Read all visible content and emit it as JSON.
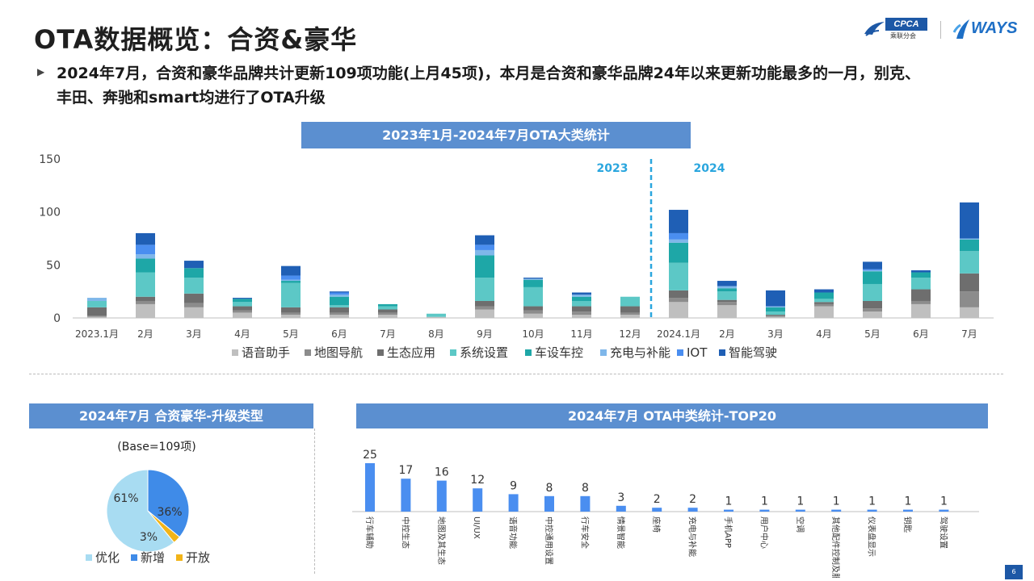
{
  "title": "OTA数据概览：合资&豪华",
  "logos": {
    "cpca_text": "CPCA",
    "cpca_sub": "乘联分会",
    "ways_text": "WAYS"
  },
  "bullet": {
    "marker": "▶",
    "line1": "2024年7月，合资和豪华品牌共计更新109项功能(上月45项)，本月是合资和豪华品牌24年以来更新功能最多的一月，别克、",
    "line2": "丰田、奔驰和smart均进行了OTA升级"
  },
  "page_number": "6",
  "colors": {
    "voice": "#bfbfbf",
    "map": "#8c8c8c",
    "eco": "#6e6e6e",
    "system": "#5cc8c6",
    "vehicle": "#1ea7a7",
    "charge": "#7fb7ea",
    "iot": "#4a8ef0",
    "adas": "#1f5fb5",
    "banner": "#5b8fd0",
    "year_label": "#2aa6de"
  },
  "chart_data": [
    {
      "type": "bar",
      "stacked": true,
      "title": "2023年1月-2024年7月OTA大类统计",
      "categories": [
        "2023.1月",
        "2月",
        "3月",
        "4月",
        "5月",
        "6月",
        "7月",
        "8月",
        "9月",
        "10月",
        "11月",
        "12月",
        "2024.1月",
        "2月",
        "3月",
        "4月",
        "5月",
        "6月",
        "7月"
      ],
      "ylim": [
        0,
        150
      ],
      "yticks": [
        0,
        50,
        100,
        150
      ],
      "year_labels": [
        "2023",
        "2024"
      ],
      "legend_position": "bottom",
      "series": [
        {
          "name": "语音助手",
          "color": "#bfbfbf",
          "values": [
            1,
            13,
            10,
            5,
            3,
            3,
            3,
            1,
            8,
            4,
            3,
            3,
            15,
            12,
            1,
            11,
            6,
            13,
            10
          ]
        },
        {
          "name": "地图导航",
          "color": "#8c8c8c",
          "values": [
            1,
            3,
            4,
            2,
            2,
            2,
            2,
            0,
            3,
            3,
            3,
            2,
            4,
            3,
            1,
            2,
            3,
            3,
            15
          ]
        },
        {
          "name": "生态应用",
          "color": "#6e6e6e",
          "values": [
            8,
            4,
            9,
            4,
            5,
            5,
            3,
            0,
            5,
            4,
            5,
            6,
            7,
            2,
            1,
            2,
            7,
            11,
            17
          ]
        },
        {
          "name": "系统设置",
          "color": "#5cc8c6",
          "values": [
            6,
            23,
            15,
            4,
            23,
            2,
            3,
            3,
            22,
            18,
            5,
            9,
            26,
            8,
            3,
            3,
            16,
            11,
            21
          ]
        },
        {
          "name": "车设车控",
          "color": "#1ea7a7",
          "values": [
            0,
            13,
            9,
            3,
            2,
            8,
            2,
            0,
            21,
            7,
            4,
            0,
            19,
            3,
            4,
            6,
            12,
            5,
            11
          ]
        },
        {
          "name": "充电与补能",
          "color": "#7fb7ea",
          "values": [
            3,
            4,
            0,
            0,
            1,
            2,
            0,
            0,
            5,
            1,
            2,
            0,
            3,
            2,
            1,
            0,
            1,
            0,
            1
          ]
        },
        {
          "name": "IOT",
          "color": "#4a8ef0",
          "values": [
            0,
            9,
            0,
            0,
            4,
            2,
            0,
            0,
            5,
            0,
            0,
            0,
            6,
            0,
            0,
            0,
            1,
            0,
            0
          ]
        },
        {
          "name": "智能驾驶",
          "color": "#1f5fb5",
          "values": [
            0,
            11,
            7,
            1,
            9,
            1,
            0,
            0,
            9,
            1,
            2,
            0,
            22,
            5,
            15,
            3,
            7,
            2,
            34
          ]
        }
      ]
    },
    {
      "type": "pie",
      "title": "2024年7月 合资豪华-升级类型",
      "subtitle": "(Base=109项)",
      "legend_position": "bottom",
      "slices": [
        {
          "name": "优化",
          "value": 61,
          "label": "61%",
          "color": "#a8dcf2"
        },
        {
          "name": "新增",
          "value": 36,
          "label": "36%",
          "color": "#3f8be8"
        },
        {
          "name": "开放",
          "value": 3,
          "label": "3%",
          "color": "#f2b418"
        }
      ]
    },
    {
      "type": "bar",
      "title": "2024年7月 OTA中类统计-TOP20",
      "categories": [
        "行车辅助",
        "中控生态",
        "地图及其生态",
        "UI/UX",
        "语音功能",
        "中控通用设置",
        "行车安全",
        "情景智能",
        "座椅",
        "充电与补能",
        "手机APP",
        "用户中心",
        "空调",
        "其他配件控制及服务",
        "仪表盘显示",
        "钥匙",
        "驾驶设置"
      ],
      "values": [
        25,
        17,
        16,
        12,
        9,
        8,
        8,
        3,
        2,
        2,
        1,
        1,
        1,
        1,
        1,
        1,
        1
      ],
      "color": "#4a8ef0"
    }
  ]
}
